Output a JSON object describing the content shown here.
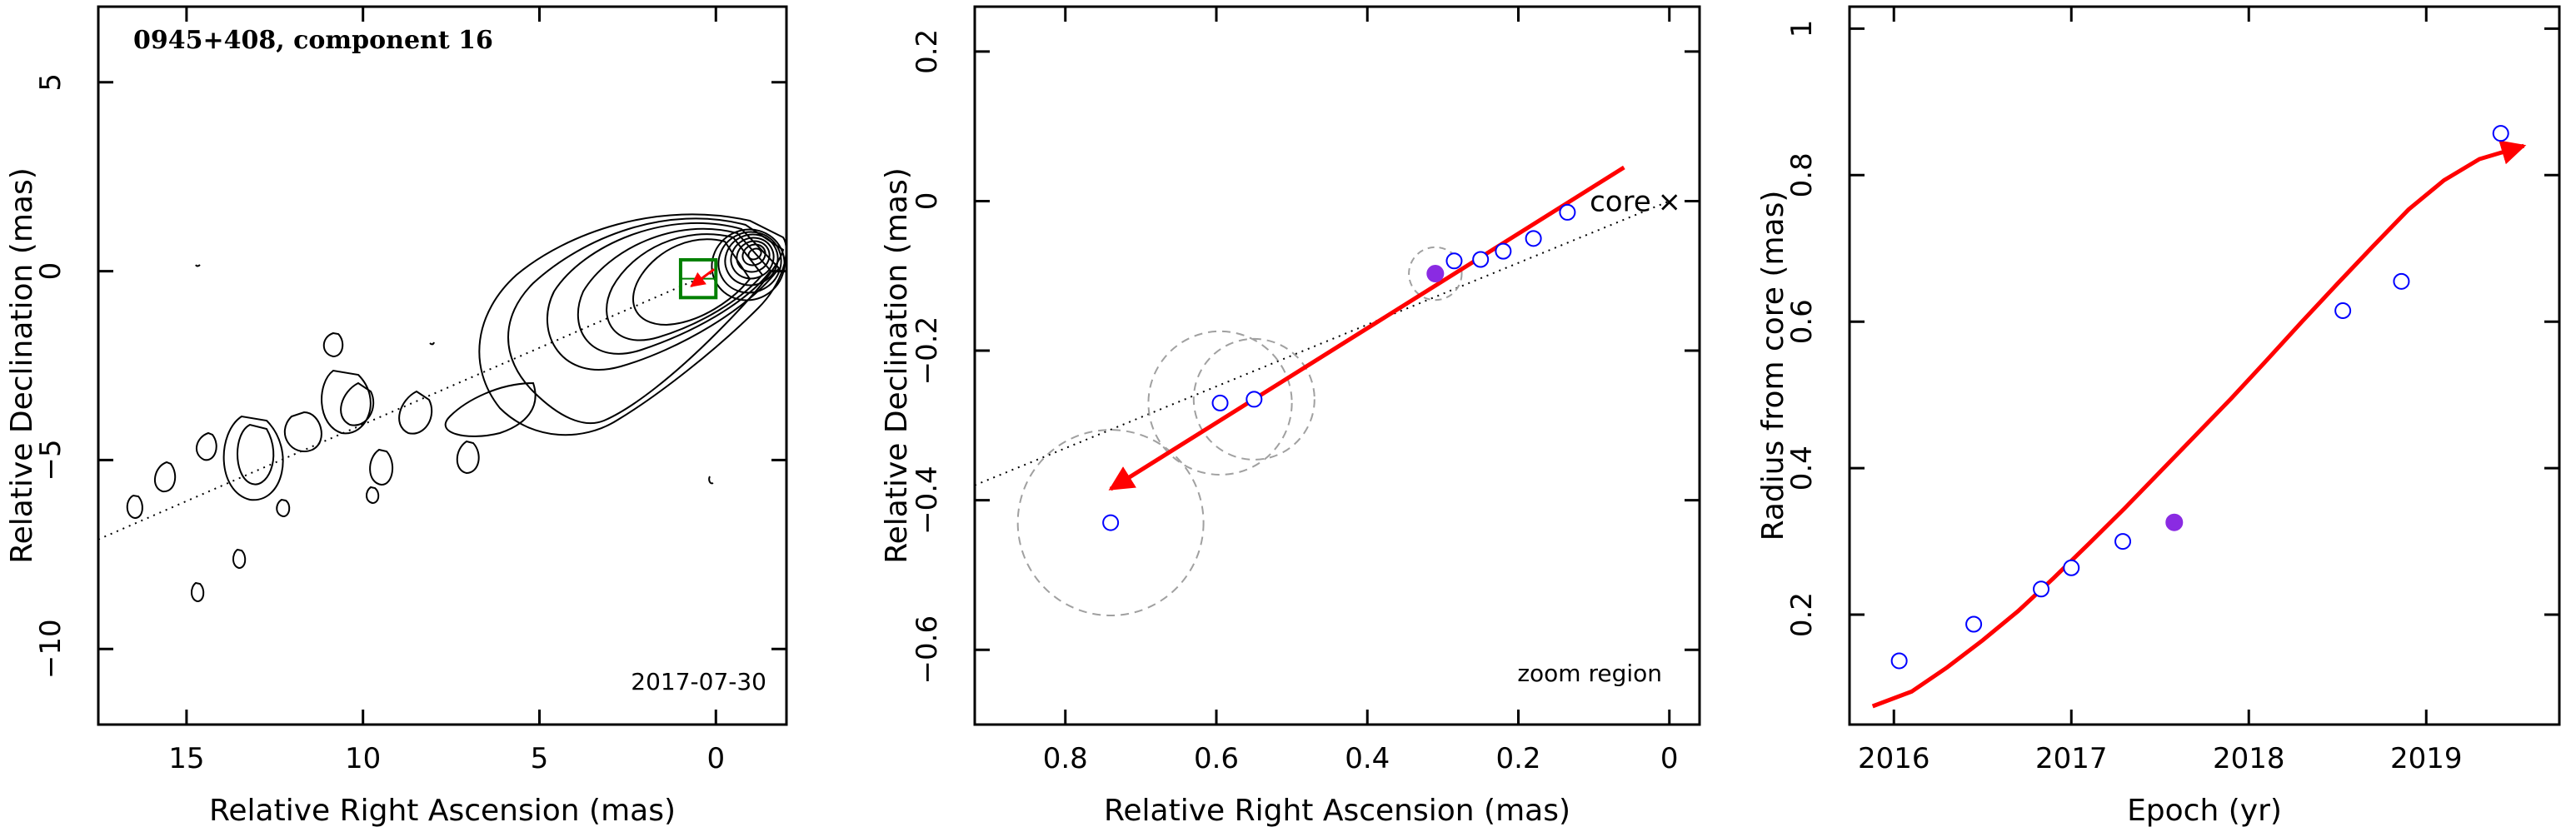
{
  "figure": {
    "source": "0945+408"
  },
  "chart_data": [
    {
      "type": "contour",
      "title": "0945+408, component 16",
      "xlabel": "Relative Right Ascension (mas)",
      "ylabel": "Relative Declination (mas)",
      "xlim": [
        17.5,
        -2.0
      ],
      "ylim": [
        -12.0,
        7.0
      ],
      "x_ticks": [
        15,
        10,
        5,
        0
      ],
      "x_tick_labels": [
        "15",
        "10",
        "5",
        "0"
      ],
      "y_ticks": [
        5,
        0,
        -5,
        -10
      ],
      "y_tick_labels": [
        "5",
        "0",
        "−5",
        "−10"
      ],
      "date": "2017-07-30",
      "zoom_box": {
        "x_range": [
          1.0,
          0.0
        ],
        "y_range": [
          -0.7,
          0.3
        ],
        "color": "#008000"
      },
      "jet_axis": {
        "from": [
          17.5,
          -7.1
        ],
        "to": [
          0,
          0
        ]
      },
      "motion_vector": {
        "from": [
          0.05,
          0.05
        ],
        "to": [
          0.7,
          -0.4
        ],
        "color": "#ff0000"
      }
    },
    {
      "type": "scatter",
      "title": "",
      "xlabel": "Relative Right Ascension (mas)",
      "ylabel": "Relative Declination (mas)",
      "xlim": [
        0.92,
        -0.04
      ],
      "ylim": [
        -0.7,
        0.26
      ],
      "x_ticks": [
        0.8,
        0.6,
        0.4,
        0.2,
        0
      ],
      "x_tick_labels": [
        "0.8",
        "0.6",
        "0.4",
        "0.2",
        "0"
      ],
      "y_ticks": [
        0.2,
        0,
        -0.2,
        -0.4,
        -0.6
      ],
      "y_tick_labels": [
        "0.2",
        "0",
        "−0.2",
        "−0.4",
        "−0.6"
      ],
      "points": [
        {
          "x": 0.74,
          "y": -0.43,
          "size": 0.123
        },
        {
          "x": 0.595,
          "y": -0.27,
          "size": 0.095
        },
        {
          "x": 0.55,
          "y": -0.265,
          "size": 0.08
        },
        {
          "x": 0.285,
          "y": -0.08
        },
        {
          "x": 0.25,
          "y": -0.078
        },
        {
          "x": 0.22,
          "y": -0.067
        },
        {
          "x": 0.18,
          "y": -0.05
        },
        {
          "x": 0.135,
          "y": -0.015
        }
      ],
      "highlight_point": {
        "x": 0.31,
        "y": -0.097,
        "size": 0.035,
        "color": "#8a2be2"
      },
      "fit_arrow": {
        "from": [
          0.06,
          0.045
        ],
        "to": [
          0.74,
          -0.385
        ],
        "color": "#ff0000"
      },
      "jet_axis": {
        "from": [
          0.92,
          -0.38
        ],
        "to": [
          0,
          0
        ]
      },
      "core_label": "core",
      "core_marker": "×",
      "core_position": [
        0,
        0
      ],
      "note": "zoom region"
    },
    {
      "type": "scatter",
      "title": "",
      "xlabel": "Epoch (yr)",
      "ylabel": "Radius from core (mas)",
      "xlim": [
        2015.75,
        2019.75
      ],
      "ylim": [
        0.05,
        1.03
      ],
      "x_ticks": [
        2016,
        2017,
        2018,
        2019
      ],
      "x_tick_labels": [
        "2016",
        "2017",
        "2018",
        "2019"
      ],
      "y_ticks": [
        0.2,
        0.4,
        0.6,
        0.8,
        1.0
      ],
      "y_tick_labels": [
        "0.2",
        "0.4",
        "0.6",
        "0.8",
        "1"
      ],
      "points": [
        {
          "x": 2016.03,
          "y": 0.137
        },
        {
          "x": 2016.45,
          "y": 0.187
        },
        {
          "x": 2016.83,
          "y": 0.235
        },
        {
          "x": 2017.0,
          "y": 0.264
        },
        {
          "x": 2017.29,
          "y": 0.3
        },
        {
          "x": 2018.53,
          "y": 0.615
        },
        {
          "x": 2018.86,
          "y": 0.655
        },
        {
          "x": 2019.42,
          "y": 0.857
        }
      ],
      "highlight_point": {
        "x": 2017.58,
        "y": 0.326,
        "color": "#8a2be2"
      },
      "fit_curve": {
        "color": "#ff0000",
        "points": [
          [
            2015.88,
            0.075
          ],
          [
            2016.1,
            0.095
          ],
          [
            2016.3,
            0.128
          ],
          [
            2016.5,
            0.165
          ],
          [
            2016.7,
            0.205
          ],
          [
            2016.9,
            0.25
          ],
          [
            2017.1,
            0.297
          ],
          [
            2017.3,
            0.345
          ],
          [
            2017.5,
            0.395
          ],
          [
            2017.7,
            0.445
          ],
          [
            2017.9,
            0.495
          ],
          [
            2018.1,
            0.547
          ],
          [
            2018.3,
            0.6
          ],
          [
            2018.5,
            0.652
          ],
          [
            2018.7,
            0.703
          ],
          [
            2018.9,
            0.753
          ],
          [
            2019.1,
            0.793
          ],
          [
            2019.3,
            0.822
          ],
          [
            2019.55,
            0.84
          ]
        ]
      }
    }
  ]
}
